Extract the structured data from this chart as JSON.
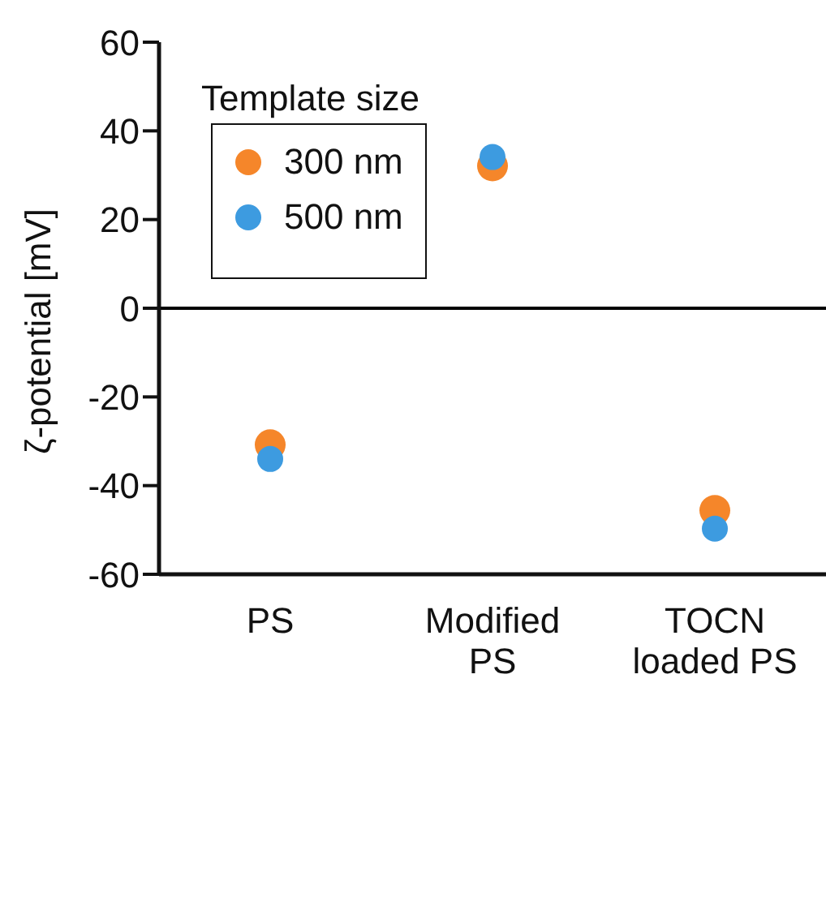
{
  "chart_data": {
    "type": "scatter",
    "ylabel": "ζ-potential [mV]",
    "legend_title": "Template size",
    "categories": [
      "PS",
      "Modified PS",
      "TOCN loaded PS"
    ],
    "series": [
      {
        "name": "300 nm",
        "color": "#f5862a",
        "values": [
          -30.8,
          32.1,
          -45.6
        ]
      },
      {
        "name": "500 nm",
        "color": "#3d9be0",
        "values": [
          -34.0,
          34.1,
          -49.7
        ]
      }
    ],
    "ylim": [
      -60,
      60
    ],
    "yticks": [
      -60,
      -40,
      -20,
      0,
      20,
      40,
      60
    ],
    "ref_lines": [
      {
        "axis": "y",
        "value": 0,
        "color": "#000000"
      }
    ],
    "legend": "top left",
    "marker": "circle",
    "grid": false
  }
}
